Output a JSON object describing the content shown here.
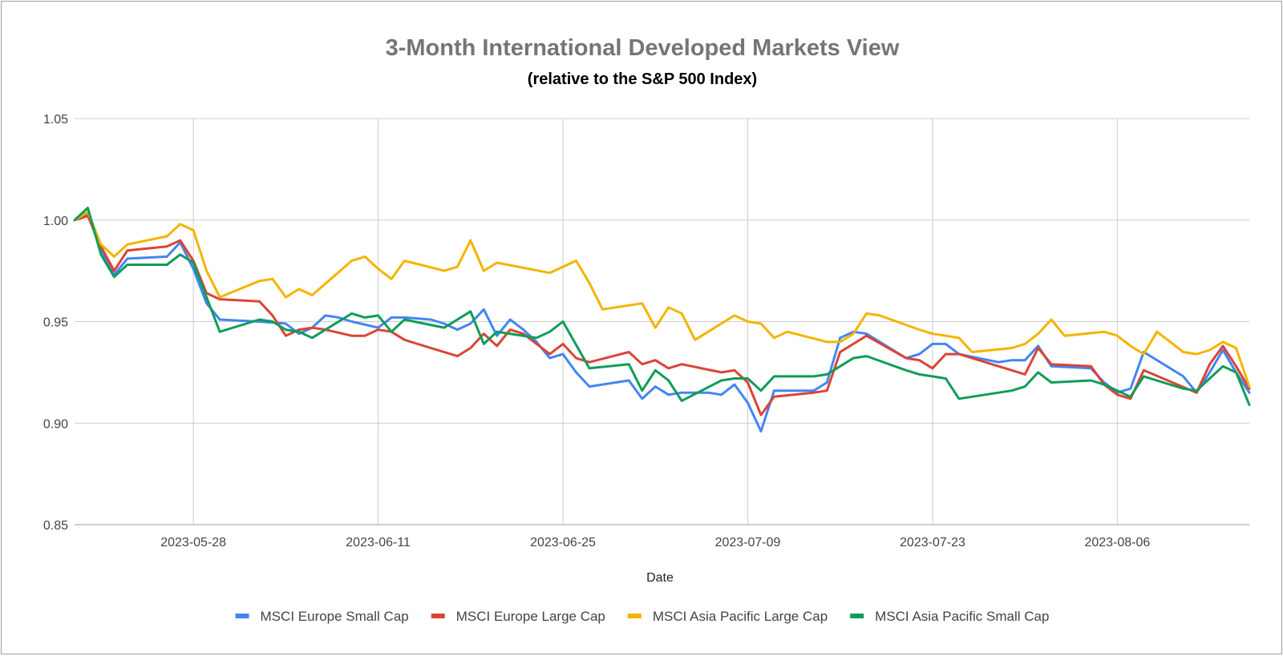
{
  "chart_data": {
    "type": "line",
    "title": "3-Month International Developed Markets View",
    "subtitle": "(relative to the S&P 500 Index)",
    "xlabel": "Date",
    "ylabel": "",
    "ylim": [
      0.85,
      1.05
    ],
    "xlim": [
      "2023-05-19",
      "2023-08-16"
    ],
    "y_ticks": [
      "0.85",
      "0.90",
      "0.95",
      "1.00",
      "1.05"
    ],
    "x_ticks": [
      "2023-05-28",
      "2023-06-11",
      "2023-06-25",
      "2023-07-09",
      "2023-07-23",
      "2023-08-06"
    ],
    "grid": true,
    "legend_position": "bottom",
    "series": [
      {
        "name": "MSCI Europe Small Cap",
        "color": "#4285F4",
        "points": [
          [
            "2023-05-19",
            1.0
          ],
          [
            "2023-05-20",
            1.003
          ],
          [
            "2023-05-21",
            0.985
          ],
          [
            "2023-05-22",
            0.973
          ],
          [
            "2023-05-23",
            0.981
          ],
          [
            "2023-05-26",
            0.982
          ],
          [
            "2023-05-27",
            0.989
          ],
          [
            "2023-05-28",
            0.976
          ],
          [
            "2023-05-29",
            0.959
          ],
          [
            "2023-05-30",
            0.951
          ],
          [
            "2023-06-02",
            0.95
          ],
          [
            "2023-06-04",
            0.949
          ],
          [
            "2023-06-05",
            0.944
          ],
          [
            "2023-06-06",
            0.947
          ],
          [
            "2023-06-07",
            0.953
          ],
          [
            "2023-06-08",
            0.952
          ],
          [
            "2023-06-09",
            0.95
          ],
          [
            "2023-06-11",
            0.947
          ],
          [
            "2023-06-12",
            0.952
          ],
          [
            "2023-06-13",
            0.952
          ],
          [
            "2023-06-15",
            0.951
          ],
          [
            "2023-06-16",
            0.949
          ],
          [
            "2023-06-17",
            0.946
          ],
          [
            "2023-06-18",
            0.949
          ],
          [
            "2023-06-19",
            0.956
          ],
          [
            "2023-06-20",
            0.943
          ],
          [
            "2023-06-21",
            0.951
          ],
          [
            "2023-06-22",
            0.946
          ],
          [
            "2023-06-23",
            0.94
          ],
          [
            "2023-06-24",
            0.932
          ],
          [
            "2023-06-25",
            0.934
          ],
          [
            "2023-06-26",
            0.925
          ],
          [
            "2023-06-27",
            0.918
          ],
          [
            "2023-06-29",
            0.92
          ],
          [
            "2023-06-30",
            0.921
          ],
          [
            "2023-07-01",
            0.912
          ],
          [
            "2023-07-02",
            0.918
          ],
          [
            "2023-07-03",
            0.914
          ],
          [
            "2023-07-04",
            0.915
          ],
          [
            "2023-07-06",
            0.915
          ],
          [
            "2023-07-07",
            0.914
          ],
          [
            "2023-07-08",
            0.919
          ],
          [
            "2023-07-09",
            0.91
          ],
          [
            "2023-07-10",
            0.896
          ],
          [
            "2023-07-11",
            0.916
          ],
          [
            "2023-07-14",
            0.916
          ],
          [
            "2023-07-15",
            0.92
          ],
          [
            "2023-07-16",
            0.942
          ],
          [
            "2023-07-17",
            0.945
          ],
          [
            "2023-07-18",
            0.944
          ],
          [
            "2023-07-21",
            0.932
          ],
          [
            "2023-07-22",
            0.934
          ],
          [
            "2023-07-23",
            0.939
          ],
          [
            "2023-07-24",
            0.939
          ],
          [
            "2023-07-25",
            0.934
          ],
          [
            "2023-07-28",
            0.93
          ],
          [
            "2023-07-29",
            0.931
          ],
          [
            "2023-07-30",
            0.931
          ],
          [
            "2023-07-31",
            0.938
          ],
          [
            "2023-08-01",
            0.928
          ],
          [
            "2023-08-04",
            0.927
          ],
          [
            "2023-08-05",
            0.92
          ],
          [
            "2023-08-06",
            0.915
          ],
          [
            "2023-08-07",
            0.917
          ],
          [
            "2023-08-08",
            0.935
          ],
          [
            "2023-08-11",
            0.923
          ],
          [
            "2023-08-12",
            0.915
          ],
          [
            "2023-08-13",
            0.925
          ],
          [
            "2023-08-14",
            0.936
          ],
          [
            "2023-08-15",
            0.925
          ],
          [
            "2023-08-16",
            0.915
          ]
        ]
      },
      {
        "name": "MSCI Europe Large Cap",
        "color": "#DB4437",
        "points": [
          [
            "2023-05-19",
            1.0
          ],
          [
            "2023-05-20",
            1.002
          ],
          [
            "2023-05-21",
            0.987
          ],
          [
            "2023-05-22",
            0.975
          ],
          [
            "2023-05-23",
            0.985
          ],
          [
            "2023-05-26",
            0.987
          ],
          [
            "2023-05-27",
            0.99
          ],
          [
            "2023-05-28",
            0.98
          ],
          [
            "2023-05-29",
            0.964
          ],
          [
            "2023-05-30",
            0.961
          ],
          [
            "2023-06-02",
            0.96
          ],
          [
            "2023-06-03",
            0.953
          ],
          [
            "2023-06-04",
            0.943
          ],
          [
            "2023-06-05",
            0.946
          ],
          [
            "2023-06-06",
            0.947
          ],
          [
            "2023-06-07",
            0.946
          ],
          [
            "2023-06-09",
            0.943
          ],
          [
            "2023-06-10",
            0.943
          ],
          [
            "2023-06-11",
            0.946
          ],
          [
            "2023-06-12",
            0.945
          ],
          [
            "2023-06-13",
            0.941
          ],
          [
            "2023-06-15",
            0.937
          ],
          [
            "2023-06-17",
            0.933
          ],
          [
            "2023-06-18",
            0.937
          ],
          [
            "2023-06-19",
            0.944
          ],
          [
            "2023-06-20",
            0.938
          ],
          [
            "2023-06-21",
            0.946
          ],
          [
            "2023-06-22",
            0.944
          ],
          [
            "2023-06-24",
            0.934
          ],
          [
            "2023-06-25",
            0.939
          ],
          [
            "2023-06-26",
            0.932
          ],
          [
            "2023-06-27",
            0.93
          ],
          [
            "2023-06-30",
            0.935
          ],
          [
            "2023-07-01",
            0.929
          ],
          [
            "2023-07-02",
            0.931
          ],
          [
            "2023-07-03",
            0.927
          ],
          [
            "2023-07-04",
            0.929
          ],
          [
            "2023-07-07",
            0.925
          ],
          [
            "2023-07-08",
            0.926
          ],
          [
            "2023-07-09",
            0.92
          ],
          [
            "2023-07-10",
            0.904
          ],
          [
            "2023-07-11",
            0.913
          ],
          [
            "2023-07-14",
            0.915
          ],
          [
            "2023-07-15",
            0.916
          ],
          [
            "2023-07-16",
            0.935
          ],
          [
            "2023-07-18",
            0.943
          ],
          [
            "2023-07-21",
            0.932
          ],
          [
            "2023-07-22",
            0.931
          ],
          [
            "2023-07-23",
            0.927
          ],
          [
            "2023-07-24",
            0.934
          ],
          [
            "2023-07-25",
            0.934
          ],
          [
            "2023-07-29",
            0.926
          ],
          [
            "2023-07-30",
            0.924
          ],
          [
            "2023-07-31",
            0.937
          ],
          [
            "2023-08-01",
            0.929
          ],
          [
            "2023-08-04",
            0.928
          ],
          [
            "2023-08-05",
            0.919
          ],
          [
            "2023-08-06",
            0.914
          ],
          [
            "2023-08-07",
            0.912
          ],
          [
            "2023-08-08",
            0.926
          ],
          [
            "2023-08-12",
            0.915
          ],
          [
            "2023-08-13",
            0.929
          ],
          [
            "2023-08-14",
            0.938
          ],
          [
            "2023-08-15",
            0.928
          ],
          [
            "2023-08-16",
            0.917
          ]
        ]
      },
      {
        "name": "MSCI Asia Pacific Large Cap",
        "color": "#F4B400",
        "points": [
          [
            "2023-05-19",
            1.0
          ],
          [
            "2023-05-20",
            1.004
          ],
          [
            "2023-05-21",
            0.988
          ],
          [
            "2023-05-22",
            0.982
          ],
          [
            "2023-05-23",
            0.988
          ],
          [
            "2023-05-26",
            0.992
          ],
          [
            "2023-05-27",
            0.998
          ],
          [
            "2023-05-28",
            0.995
          ],
          [
            "2023-05-29",
            0.975
          ],
          [
            "2023-05-30",
            0.962
          ],
          [
            "2023-06-02",
            0.97
          ],
          [
            "2023-06-03",
            0.971
          ],
          [
            "2023-06-04",
            0.962
          ],
          [
            "2023-06-05",
            0.966
          ],
          [
            "2023-06-06",
            0.963
          ],
          [
            "2023-06-09",
            0.98
          ],
          [
            "2023-06-10",
            0.982
          ],
          [
            "2023-06-11",
            0.976
          ],
          [
            "2023-06-12",
            0.971
          ],
          [
            "2023-06-13",
            0.98
          ],
          [
            "2023-06-16",
            0.975
          ],
          [
            "2023-06-17",
            0.977
          ],
          [
            "2023-06-18",
            0.99
          ],
          [
            "2023-06-19",
            0.975
          ],
          [
            "2023-06-20",
            0.979
          ],
          [
            "2023-06-24",
            0.974
          ],
          [
            "2023-06-25",
            0.977
          ],
          [
            "2023-06-26",
            0.98
          ],
          [
            "2023-06-27",
            0.969
          ],
          [
            "2023-06-28",
            0.956
          ],
          [
            "2023-07-01",
            0.959
          ],
          [
            "2023-07-02",
            0.947
          ],
          [
            "2023-07-03",
            0.957
          ],
          [
            "2023-07-04",
            0.954
          ],
          [
            "2023-07-05",
            0.941
          ],
          [
            "2023-07-08",
            0.953
          ],
          [
            "2023-07-09",
            0.95
          ],
          [
            "2023-07-10",
            0.949
          ],
          [
            "2023-07-11",
            0.942
          ],
          [
            "2023-07-12",
            0.945
          ],
          [
            "2023-07-15",
            0.94
          ],
          [
            "2023-07-16",
            0.94
          ],
          [
            "2023-07-17",
            0.944
          ],
          [
            "2023-07-18",
            0.954
          ],
          [
            "2023-07-19",
            0.953
          ],
          [
            "2023-07-22",
            0.946
          ],
          [
            "2023-07-23",
            0.944
          ],
          [
            "2023-07-24",
            0.943
          ],
          [
            "2023-07-25",
            0.942
          ],
          [
            "2023-07-26",
            0.935
          ],
          [
            "2023-07-29",
            0.937
          ],
          [
            "2023-07-30",
            0.939
          ],
          [
            "2023-07-31",
            0.944
          ],
          [
            "2023-08-01",
            0.951
          ],
          [
            "2023-08-02",
            0.943
          ],
          [
            "2023-08-05",
            0.945
          ],
          [
            "2023-08-06",
            0.943
          ],
          [
            "2023-08-07",
            0.938
          ],
          [
            "2023-08-08",
            0.934
          ],
          [
            "2023-08-09",
            0.945
          ],
          [
            "2023-08-11",
            0.935
          ],
          [
            "2023-08-12",
            0.934
          ],
          [
            "2023-08-13",
            0.936
          ],
          [
            "2023-08-14",
            0.94
          ],
          [
            "2023-08-15",
            0.937
          ],
          [
            "2023-08-16",
            0.918
          ]
        ]
      },
      {
        "name": "MSCI Asia Pacific Small Cap",
        "color": "#0F9D58",
        "points": [
          [
            "2023-05-19",
            1.0
          ],
          [
            "2023-05-20",
            1.006
          ],
          [
            "2023-05-21",
            0.983
          ],
          [
            "2023-05-22",
            0.972
          ],
          [
            "2023-05-23",
            0.978
          ],
          [
            "2023-05-26",
            0.978
          ],
          [
            "2023-05-27",
            0.983
          ],
          [
            "2023-05-28",
            0.979
          ],
          [
            "2023-05-29",
            0.962
          ],
          [
            "2023-05-30",
            0.945
          ],
          [
            "2023-06-02",
            0.951
          ],
          [
            "2023-06-03",
            0.95
          ],
          [
            "2023-06-04",
            0.946
          ],
          [
            "2023-06-05",
            0.945
          ],
          [
            "2023-06-06",
            0.942
          ],
          [
            "2023-06-09",
            0.954
          ],
          [
            "2023-06-10",
            0.952
          ],
          [
            "2023-06-11",
            0.953
          ],
          [
            "2023-06-12",
            0.945
          ],
          [
            "2023-06-13",
            0.951
          ],
          [
            "2023-06-16",
            0.947
          ],
          [
            "2023-06-18",
            0.955
          ],
          [
            "2023-06-19",
            0.939
          ],
          [
            "2023-06-20",
            0.945
          ],
          [
            "2023-06-23",
            0.942
          ],
          [
            "2023-06-24",
            0.945
          ],
          [
            "2023-06-25",
            0.95
          ],
          [
            "2023-06-27",
            0.927
          ],
          [
            "2023-06-30",
            0.929
          ],
          [
            "2023-07-01",
            0.916
          ],
          [
            "2023-07-02",
            0.926
          ],
          [
            "2023-07-03",
            0.921
          ],
          [
            "2023-07-04",
            0.911
          ],
          [
            "2023-07-07",
            0.921
          ],
          [
            "2023-07-08",
            0.922
          ],
          [
            "2023-07-09",
            0.922
          ],
          [
            "2023-07-10",
            0.916
          ],
          [
            "2023-07-11",
            0.923
          ],
          [
            "2023-07-14",
            0.923
          ],
          [
            "2023-07-15",
            0.924
          ],
          [
            "2023-07-16",
            0.928
          ],
          [
            "2023-07-17",
            0.932
          ],
          [
            "2023-07-18",
            0.933
          ],
          [
            "2023-07-21",
            0.926
          ],
          [
            "2023-07-22",
            0.924
          ],
          [
            "2023-07-23",
            0.923
          ],
          [
            "2023-07-24",
            0.922
          ],
          [
            "2023-07-25",
            0.912
          ],
          [
            "2023-07-29",
            0.916
          ],
          [
            "2023-07-30",
            0.918
          ],
          [
            "2023-07-31",
            0.925
          ],
          [
            "2023-08-01",
            0.92
          ],
          [
            "2023-08-04",
            0.921
          ],
          [
            "2023-08-05",
            0.919
          ],
          [
            "2023-08-06",
            0.916
          ],
          [
            "2023-08-07",
            0.913
          ],
          [
            "2023-08-08",
            0.923
          ],
          [
            "2023-08-11",
            0.917
          ],
          [
            "2023-08-12",
            0.916
          ],
          [
            "2023-08-13",
            0.922
          ],
          [
            "2023-08-14",
            0.928
          ],
          [
            "2023-08-15",
            0.925
          ],
          [
            "2023-08-16",
            0.909
          ]
        ]
      }
    ]
  }
}
